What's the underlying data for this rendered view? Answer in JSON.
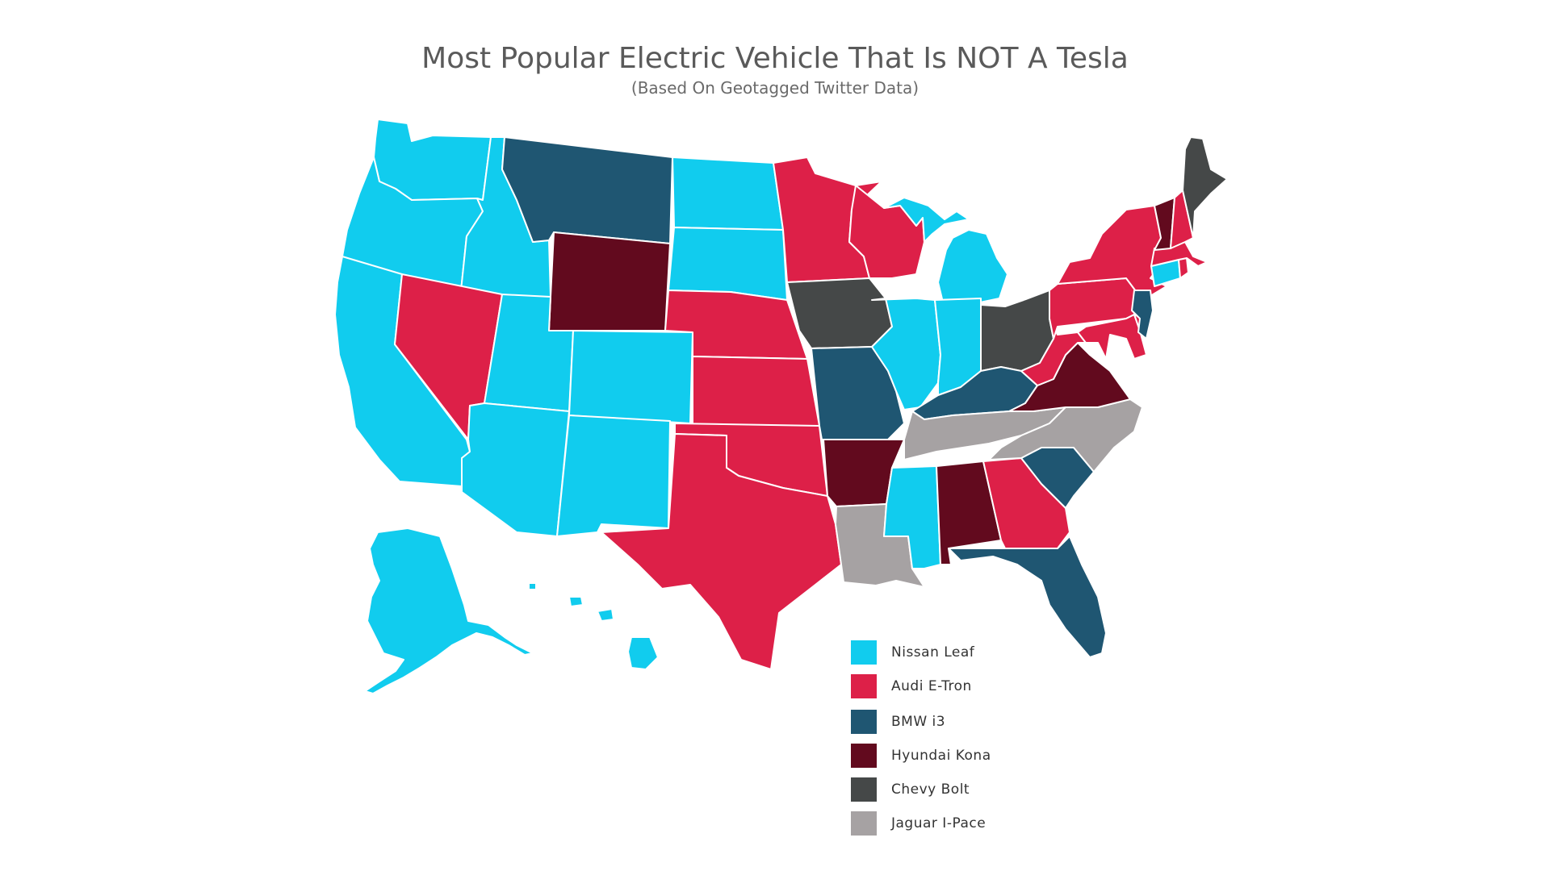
{
  "title": "Most Popular Electric Vehicle That Is NOT A Tesla",
  "subtitle": "(Based On Geotagged Twitter Data)",
  "colors": {
    "nissan_leaf": "#11ccee",
    "audi_etron": "#dd2048",
    "bmw_i3": "#1f5672",
    "hyundai_kona": "#620a1e",
    "chevy_bolt": "#454848",
    "jaguar_ipace": "#a6a2a3"
  },
  "legend": [
    {
      "label": "Nissan Leaf",
      "color": "#11ccee"
    },
    {
      "label": "Audi E-Tron",
      "color": "#dd2048"
    },
    {
      "label": "BMW i3",
      "color": "#1f5672"
    },
    {
      "label": "Hyundai Kona",
      "color": "#620a1e"
    },
    {
      "label": "Chevy Bolt",
      "color": "#454848"
    },
    {
      "label": "Jaguar I-Pace",
      "color": "#a6a2a3"
    }
  ],
  "states": [
    {
      "id": "WA",
      "vehicle": "Nissan Leaf"
    },
    {
      "id": "OR",
      "vehicle": "Nissan Leaf"
    },
    {
      "id": "CA",
      "vehicle": "Nissan Leaf"
    },
    {
      "id": "ID",
      "vehicle": "Nissan Leaf"
    },
    {
      "id": "NV",
      "vehicle": "Audi E-Tron"
    },
    {
      "id": "MT",
      "vehicle": "BMW i3"
    },
    {
      "id": "WY",
      "vehicle": "Hyundai Kona"
    },
    {
      "id": "UT",
      "vehicle": "Nissan Leaf"
    },
    {
      "id": "CO",
      "vehicle": "Nissan Leaf"
    },
    {
      "id": "AZ",
      "vehicle": "Nissan Leaf"
    },
    {
      "id": "NM",
      "vehicle": "Nissan Leaf"
    },
    {
      "id": "ND",
      "vehicle": "Nissan Leaf"
    },
    {
      "id": "SD",
      "vehicle": "Nissan Leaf"
    },
    {
      "id": "NE",
      "vehicle": "Audi E-Tron"
    },
    {
      "id": "KS",
      "vehicle": "Audi E-Tron"
    },
    {
      "id": "OK",
      "vehicle": "Audi E-Tron"
    },
    {
      "id": "TX",
      "vehicle": "Audi E-Tron"
    },
    {
      "id": "MN",
      "vehicle": "Audi E-Tron"
    },
    {
      "id": "IA",
      "vehicle": "Chevy Bolt"
    },
    {
      "id": "MO",
      "vehicle": "BMW i3"
    },
    {
      "id": "AR",
      "vehicle": "Hyundai Kona"
    },
    {
      "id": "LA",
      "vehicle": "Jaguar I-Pace"
    },
    {
      "id": "WI",
      "vehicle": "Audi E-Tron"
    },
    {
      "id": "MI",
      "vehicle": "Nissan Leaf"
    },
    {
      "id": "IL",
      "vehicle": "Nissan Leaf"
    },
    {
      "id": "IN",
      "vehicle": "Nissan Leaf"
    },
    {
      "id": "OH",
      "vehicle": "Chevy Bolt"
    },
    {
      "id": "KY",
      "vehicle": "BMW i3"
    },
    {
      "id": "TN",
      "vehicle": "Jaguar I-Pace"
    },
    {
      "id": "MS",
      "vehicle": "Nissan Leaf"
    },
    {
      "id": "AL",
      "vehicle": "Hyundai Kona"
    },
    {
      "id": "GA",
      "vehicle": "Audi E-Tron"
    },
    {
      "id": "FL",
      "vehicle": "BMW i3"
    },
    {
      "id": "SC",
      "vehicle": "BMW i3"
    },
    {
      "id": "NC",
      "vehicle": "Jaguar I-Pace"
    },
    {
      "id": "VA",
      "vehicle": "Hyundai Kona"
    },
    {
      "id": "WV",
      "vehicle": "Audi E-Tron"
    },
    {
      "id": "PA",
      "vehicle": "Audi E-Tron"
    },
    {
      "id": "NY",
      "vehicle": "Audi E-Tron"
    },
    {
      "id": "MD",
      "vehicle": "Audi E-Tron"
    },
    {
      "id": "DE",
      "vehicle": "Audi E-Tron"
    },
    {
      "id": "NJ",
      "vehicle": "BMW i3"
    },
    {
      "id": "CT",
      "vehicle": "Nissan Leaf"
    },
    {
      "id": "RI",
      "vehicle": "Audi E-Tron"
    },
    {
      "id": "MA",
      "vehicle": "Audi E-Tron"
    },
    {
      "id": "VT",
      "vehicle": "Hyundai Kona"
    },
    {
      "id": "NH",
      "vehicle": "Audi E-Tron"
    },
    {
      "id": "ME",
      "vehicle": "Chevy Bolt"
    },
    {
      "id": "AK",
      "vehicle": "Nissan Leaf"
    },
    {
      "id": "HI",
      "vehicle": "Nissan Leaf"
    }
  ]
}
